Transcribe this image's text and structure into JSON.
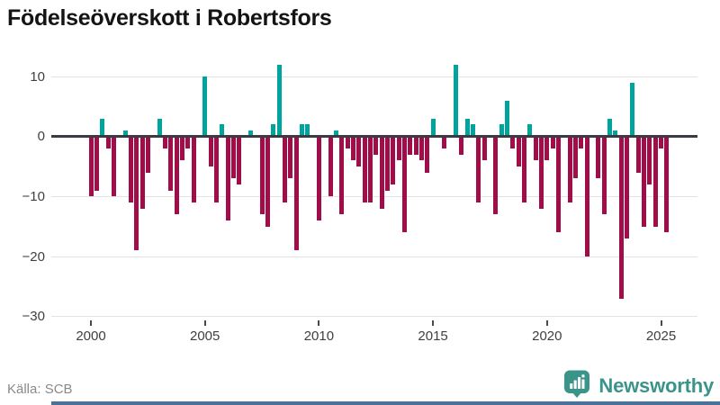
{
  "title": "Födelseöverskott i Robertsfors",
  "source_label": "Källa: SCB",
  "brand": {
    "name": "Newsworthy",
    "icon": "newsworthy-speech-bubble-bar-chart-icon"
  },
  "colors": {
    "positive_bar": "#00A49E",
    "negative_bar": "#A00D49",
    "zero_line": "#3A3A42",
    "gridline": "#E3E3E3",
    "title_text": "#141414",
    "axis_text": "#3F3F3F",
    "tick_mark": "#4A4A4A",
    "source_text": "#8A8A8A",
    "brand_teal": "#3A948A",
    "bottom_strip": "#4A7298",
    "background": "#FFFFFF"
  },
  "chart_data": {
    "type": "bar",
    "title": "Födelseöverskott i Robertsfors",
    "frequency": "quarterly",
    "start": "2000-Q1",
    "end": "2025-Q2",
    "values": [
      -10,
      -9,
      3,
      -2,
      -10,
      0,
      1,
      -11,
      -19,
      -12,
      -6,
      0,
      3,
      -2,
      -9,
      -13,
      -4,
      -2,
      -11,
      0,
      10,
      -5,
      -11,
      2,
      -14,
      -7,
      -8,
      0,
      1,
      0,
      -13,
      -15,
      2,
      12,
      -11,
      -7,
      -19,
      2,
      2,
      0,
      -14,
      0,
      -10,
      1,
      -13,
      -2,
      -4,
      -5,
      -11,
      -11,
      -3,
      -12,
      -9,
      -8,
      -4,
      -16,
      -3,
      -3,
      -4,
      -6,
      3,
      0,
      -2,
      0,
      12,
      -3,
      3,
      2,
      -11,
      -4,
      0,
      -13,
      2,
      6,
      -2,
      -5,
      -11,
      2,
      -4,
      -12,
      -4,
      -2,
      -16,
      0,
      -11,
      -7,
      -2,
      -20,
      0,
      -7,
      -13,
      3,
      1,
      -27,
      -17,
      9,
      -6,
      -15,
      -8,
      -15,
      -2,
      -16
    ],
    "y_ticks": [
      10,
      0,
      -10,
      -20,
      -30
    ],
    "y_tick_labels": [
      "10",
      "0",
      "−10",
      "−20",
      "−30"
    ],
    "x_ticks": [
      2000,
      2005,
      2010,
      2015,
      2020,
      2025
    ],
    "x_tick_labels": [
      "2000",
      "2005",
      "2010",
      "2015",
      "2020",
      "2025"
    ],
    "ylim": [
      -30,
      13
    ],
    "grid": true,
    "legend": "none",
    "positive_color": "#00A49E",
    "negative_color": "#A00D49"
  }
}
